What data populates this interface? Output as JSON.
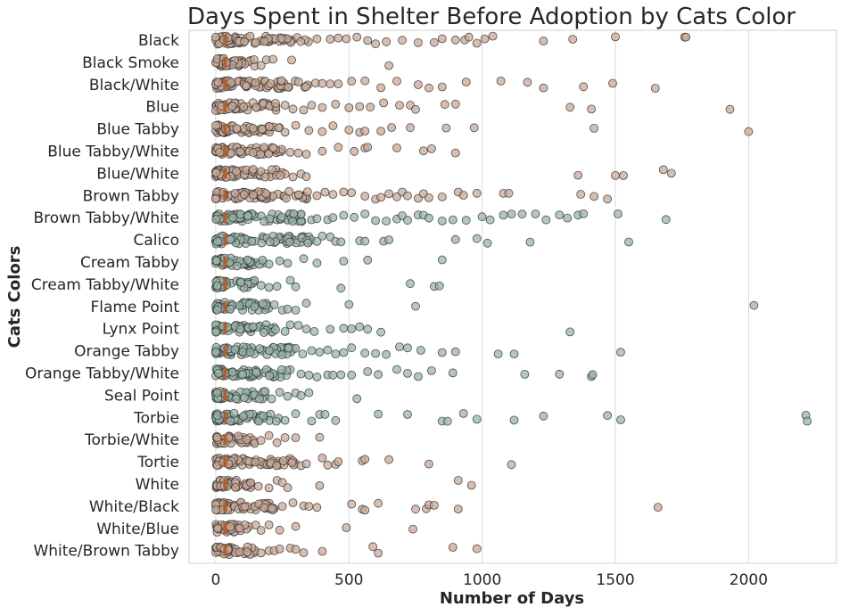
{
  "chart_data": {
    "type": "scatter",
    "title": "Days Spent in Shelter Before Adoption by Cats Color",
    "xlabel": "Number of Days",
    "ylabel": "Cats Colors",
    "xlim": [
      -100,
      2330
    ],
    "xticks": [
      0,
      500,
      1000,
      1500,
      2000
    ],
    "xtick_labels": [
      "0",
      "500",
      "1000",
      "1500",
      "2000"
    ],
    "grid": "vertical",
    "point_colors": {
      "first_group": "#c8a896",
      "second_group": "#98b4a8"
    },
    "point_edge_color": "#333333",
    "median_marker_color": "#b06030",
    "categories": [
      "Black",
      "Black Smoke",
      "Black/White",
      "Blue",
      "Blue Tabby",
      "Blue Tabby/White",
      "Blue/White",
      "Brown Tabby",
      "Brown Tabby/White",
      "Calico",
      "Cream Tabby",
      "Cream Tabby/White",
      "Flame Point",
      "Lynx Point",
      "Orange Tabby",
      "Orange Tabby/White",
      "Seal Point",
      "Torbie",
      "Torbie/White",
      "Tortie",
      "White",
      "White/Black",
      "White/Blue",
      "White/Brown Tabby"
    ],
    "series": [
      {
        "category": "Black",
        "max": 350,
        "outliers": [
          380,
          430,
          460,
          490,
          530,
          570,
          600,
          640,
          700,
          760,
          820,
          850,
          900,
          935,
          950,
          980,
          1010,
          1040,
          1230,
          1340,
          1500,
          1760,
          1765
        ]
      },
      {
        "category": "Black Smoke",
        "max": 150,
        "outliers": [
          170,
          190,
          215,
          285,
          650
        ]
      },
      {
        "category": "Black/White",
        "max": 350,
        "outliers": [
          375,
          400,
          430,
          460,
          510,
          560,
          620,
          680,
          760,
          800,
          850,
          940,
          1070,
          1170,
          1230,
          1380,
          1490,
          1650
        ]
      },
      {
        "category": "Blue",
        "max": 240,
        "outliers": [
          260,
          290,
          330,
          360,
          400,
          450,
          500,
          540,
          580,
          630,
          690,
          730,
          750,
          860,
          900,
          1330,
          1410,
          1930
        ]
      },
      {
        "category": "Blue Tabby",
        "max": 240,
        "outliers": [
          260,
          300,
          350,
          400,
          440,
          500,
          540,
          560,
          620,
          660,
          730,
          865,
          970,
          1420,
          2000
        ]
      },
      {
        "category": "Blue Tabby/White",
        "max": 260,
        "outliers": [
          280,
          310,
          340,
          400,
          460,
          520,
          560,
          570,
          680,
          780,
          810,
          900
        ]
      },
      {
        "category": "Blue/White",
        "max": 270,
        "outliers": [
          290,
          320,
          340,
          1360,
          1500,
          1530,
          1680,
          1710
        ]
      },
      {
        "category": "Brown Tabby",
        "max": 360,
        "outliers": [
          380,
          410,
          440,
          480,
          510,
          560,
          600,
          620,
          650,
          680,
          700,
          720,
          760,
          780,
          800,
          850,
          910,
          930,
          980,
          1080,
          1100,
          1370,
          1420,
          1470
        ]
      },
      {
        "category": "Brown Tabby/White",
        "max": 340,
        "outliers": [
          360,
          380,
          420,
          440,
          480,
          520,
          560,
          600,
          640,
          680,
          700,
          720,
          760,
          780,
          800,
          850,
          890,
          940,
          1000,
          1030,
          1080,
          1110,
          1150,
          1200,
          1240,
          1290,
          1320,
          1360,
          1380,
          1510,
          1690
        ]
      },
      {
        "category": "Calico",
        "max": 360,
        "outliers": [
          380,
          400,
          430,
          450,
          470,
          540,
          560,
          630,
          650,
          900,
          980,
          1020,
          1180,
          1550
        ]
      },
      {
        "category": "Cream Tabby",
        "max": 180,
        "outliers": [
          200,
          240,
          270,
          330,
          380,
          480,
          570,
          850
        ]
      },
      {
        "category": "Cream Tabby/White",
        "max": 150,
        "outliers": [
          170,
          200,
          230,
          280,
          300,
          470,
          730,
          820,
          840
        ]
      },
      {
        "category": "Flame Point",
        "max": 200,
        "outliers": [
          220,
          250,
          270,
          300,
          340,
          500,
          750,
          2020
        ]
      },
      {
        "category": "Lynx Point",
        "max": 230,
        "outliers": [
          260,
          280,
          310,
          340,
          370,
          430,
          480,
          510,
          540,
          570,
          620,
          1330
        ]
      },
      {
        "category": "Orange Tabby",
        "max": 340,
        "outliers": [
          360,
          390,
          420,
          450,
          480,
          510,
          560,
          600,
          640,
          690,
          720,
          770,
          850,
          900,
          1060,
          1120,
          1520
        ]
      },
      {
        "category": "Orange Tabby/White",
        "max": 330,
        "outliers": [
          350,
          380,
          420,
          440,
          470,
          510,
          570,
          610,
          680,
          720,
          760,
          810,
          890,
          1160,
          1290,
          1410,
          1415
        ]
      },
      {
        "category": "Seal Point",
        "max": 190,
        "outliers": [
          210,
          240,
          270,
          300,
          320,
          350,
          530
        ]
      },
      {
        "category": "Torbie",
        "max": 240,
        "outliers": [
          260,
          300,
          360,
          390,
          410,
          450,
          610,
          720,
          850,
          870,
          930,
          980,
          1120,
          1230,
          1470,
          1520,
          2215,
          2220
        ]
      },
      {
        "category": "Torbie/White",
        "max": 150,
        "outliers": [
          170,
          200,
          230,
          260,
          300,
          390
        ]
      },
      {
        "category": "Tortie",
        "max": 300,
        "outliers": [
          320,
          340,
          400,
          420,
          450,
          460,
          550,
          560,
          650,
          800,
          1110
        ]
      },
      {
        "category": "White",
        "max": 140,
        "outliers": [
          160,
          200,
          230,
          250,
          270,
          390,
          910,
          960
        ]
      },
      {
        "category": "White/Black",
        "max": 230,
        "outliers": [
          250,
          290,
          330,
          350,
          380,
          510,
          550,
          560,
          610,
          750,
          790,
          800,
          820,
          910,
          1660
        ]
      },
      {
        "category": "White/Blue",
        "max": 130,
        "outliers": [
          150,
          170,
          200,
          240,
          300,
          490,
          740
        ]
      },
      {
        "category": "White/Brown Tabby",
        "max": 150,
        "outliers": [
          170,
          200,
          220,
          240,
          280,
          300,
          330,
          400,
          590,
          610,
          890,
          980
        ]
      }
    ]
  }
}
